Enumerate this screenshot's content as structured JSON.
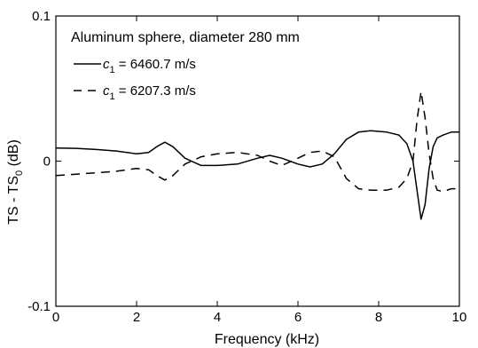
{
  "chart_data": {
    "type": "line",
    "title": "Aluminum sphere, diameter 280 mm",
    "xlabel": "Frequency (kHz)",
    "ylabel": {
      "main": "TS - TS",
      "sub": "0",
      "unit": " (dB)"
    },
    "xlim": [
      0,
      10
    ],
    "ylim": [
      -0.1,
      0.1
    ],
    "xticks": [
      0,
      2,
      4,
      6,
      8,
      10
    ],
    "xtick_labels": [
      "0",
      "2",
      "4",
      "6",
      "8",
      "10"
    ],
    "yticks": [
      -0.1,
      0,
      0.1
    ],
    "ytick_labels": [
      "-0.1",
      "0",
      "0.1"
    ],
    "grid": false,
    "legend_position": "top-left",
    "series": [
      {
        "name": "c1 = 6460.7 m/s",
        "legend": {
          "var": "c",
          "sub": "1",
          "rest": " = 6460.7 m/s"
        },
        "style": "solid",
        "color": "#000000",
        "x": [
          0,
          0.5,
          1.0,
          1.5,
          2.0,
          2.3,
          2.5,
          2.7,
          2.9,
          3.2,
          3.6,
          4.0,
          4.5,
          5.0,
          5.3,
          5.6,
          6.0,
          6.3,
          6.6,
          6.9,
          7.2,
          7.5,
          7.8,
          8.2,
          8.5,
          8.7,
          8.85,
          8.95,
          9.05,
          9.15,
          9.25,
          9.35,
          9.45,
          9.6,
          9.8,
          10.0
        ],
        "y": [
          0.009,
          0.0088,
          0.008,
          0.007,
          0.005,
          0.006,
          0.01,
          0.013,
          0.01,
          0.002,
          -0.003,
          -0.003,
          -0.002,
          0.002,
          0.004,
          0.002,
          -0.002,
          -0.004,
          -0.002,
          0.005,
          0.015,
          0.02,
          0.021,
          0.02,
          0.018,
          0.012,
          0.0,
          -0.02,
          -0.04,
          -0.03,
          -0.005,
          0.01,
          0.016,
          0.018,
          0.02,
          0.02
        ]
      },
      {
        "name": "c1 = 6207.3 m/s",
        "legend": {
          "var": "c",
          "sub": "1",
          "rest": " = 6207.3 m/s"
        },
        "style": "dashed",
        "color": "#000000",
        "x": [
          0,
          0.5,
          1.0,
          1.5,
          2.0,
          2.3,
          2.5,
          2.7,
          2.9,
          3.2,
          3.6,
          4.0,
          4.5,
          5.0,
          5.3,
          5.6,
          6.0,
          6.3,
          6.6,
          6.9,
          7.2,
          7.5,
          7.8,
          8.2,
          8.5,
          8.7,
          8.85,
          8.95,
          9.05,
          9.15,
          9.25,
          9.35,
          9.45,
          9.6,
          9.8,
          10.0
        ],
        "y": [
          -0.01,
          -0.009,
          -0.008,
          -0.007,
          -0.005,
          -0.006,
          -0.01,
          -0.013,
          -0.01,
          -0.002,
          0.003,
          0.005,
          0.006,
          0.004,
          0.0,
          -0.003,
          0.002,
          0.006,
          0.007,
          0.003,
          -0.012,
          -0.019,
          -0.02,
          -0.02,
          -0.018,
          -0.012,
          0.0,
          0.028,
          0.048,
          0.03,
          0.005,
          -0.012,
          -0.02,
          -0.021,
          -0.019,
          -0.019
        ]
      }
    ]
  }
}
